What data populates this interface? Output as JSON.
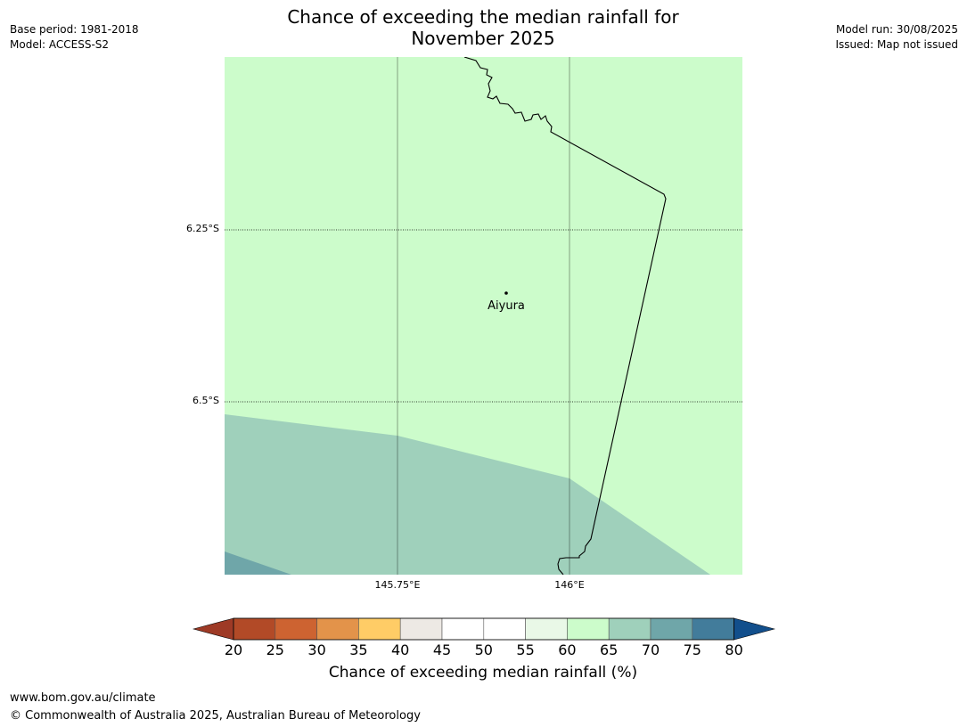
{
  "header": {
    "base_period": "Base period: 1981-2018",
    "model": "Model: ACCESS-S2",
    "model_run": "Model run: 30/08/2025",
    "issued": "Issued: Map not issued",
    "title_line1": "Chance of exceeding the median rainfall for",
    "title_line2": "November 2025"
  },
  "map": {
    "latitudes": [
      "6.25°S",
      "6.5°S"
    ],
    "longitudes": [
      "145.75°E",
      "146°E"
    ],
    "city": "Aiyura",
    "colors": {
      "region_60_65": "#ccfccb",
      "region_65_70": "#9fd0bb",
      "region_70_75": "#6fa6a9",
      "border": "#000000",
      "grid": "#000000"
    }
  },
  "colorbar": {
    "ticks": [
      "20",
      "25",
      "30",
      "35",
      "40",
      "45",
      "50",
      "55",
      "60",
      "65",
      "70",
      "75",
      "80"
    ],
    "under_color": "#9e3a26",
    "over_color": "#124f8c",
    "colors": [
      "#b24a27",
      "#cd6331",
      "#e3934a",
      "#ffcc66",
      "#ede9e4",
      "#ffffff",
      "#ffffff",
      "#e9f8e7",
      "#ccfccb",
      "#9fd0bb",
      "#6fa6a9",
      "#427c9b"
    ],
    "label": "Chance of exceeding median rainfall (%)"
  },
  "footer": {
    "url": "www.bom.gov.au/climate",
    "copyright": "© Commonwealth of Australia 2025, Australian Bureau of Meteorology"
  }
}
